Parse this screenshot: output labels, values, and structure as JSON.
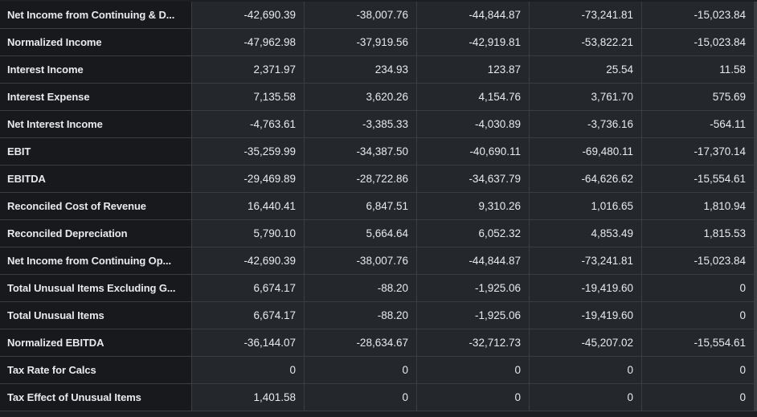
{
  "rows": [
    {
      "label": "Net Income from Continuing & D...",
      "values": [
        "-42,690.39",
        "-38,007.76",
        "-44,844.87",
        "-73,241.81",
        "-15,023.84"
      ]
    },
    {
      "label": "Normalized Income",
      "values": [
        "-47,962.98",
        "-37,919.56",
        "-42,919.81",
        "-53,822.21",
        "-15,023.84"
      ]
    },
    {
      "label": "Interest Income",
      "values": [
        "2,371.97",
        "234.93",
        "123.87",
        "25.54",
        "11.58"
      ]
    },
    {
      "label": "Interest Expense",
      "values": [
        "7,135.58",
        "3,620.26",
        "4,154.76",
        "3,761.70",
        "575.69"
      ]
    },
    {
      "label": "Net Interest Income",
      "values": [
        "-4,763.61",
        "-3,385.33",
        "-4,030.89",
        "-3,736.16",
        "-564.11"
      ]
    },
    {
      "label": "EBIT",
      "values": [
        "-35,259.99",
        "-34,387.50",
        "-40,690.11",
        "-69,480.11",
        "-17,370.14"
      ]
    },
    {
      "label": "EBITDA",
      "values": [
        "-29,469.89",
        "-28,722.86",
        "-34,637.79",
        "-64,626.62",
        "-15,554.61"
      ]
    },
    {
      "label": "Reconciled Cost of Revenue",
      "values": [
        "16,440.41",
        "6,847.51",
        "9,310.26",
        "1,016.65",
        "1,810.94"
      ]
    },
    {
      "label": "Reconciled Depreciation",
      "values": [
        "5,790.10",
        "5,664.64",
        "6,052.32",
        "4,853.49",
        "1,815.53"
      ]
    },
    {
      "label": "Net Income from Continuing Op...",
      "values": [
        "-42,690.39",
        "-38,007.76",
        "-44,844.87",
        "-73,241.81",
        "-15,023.84"
      ]
    },
    {
      "label": "Total Unusual Items Excluding G...",
      "values": [
        "6,674.17",
        "-88.20",
        "-1,925.06",
        "-19,419.60",
        "0"
      ]
    },
    {
      "label": "Total Unusual Items",
      "values": [
        "6,674.17",
        "-88.20",
        "-1,925.06",
        "-19,419.60",
        "0"
      ]
    },
    {
      "label": "Normalized EBITDA",
      "values": [
        "-36,144.07",
        "-28,634.67",
        "-32,712.73",
        "-45,207.02",
        "-15,554.61"
      ]
    },
    {
      "label": "Tax Rate for Calcs",
      "values": [
        "0",
        "0",
        "0",
        "0",
        "0"
      ]
    },
    {
      "label": "Tax Effect of Unusual Items",
      "values": [
        "1,401.58",
        "0",
        "0",
        "0",
        "0"
      ]
    }
  ]
}
